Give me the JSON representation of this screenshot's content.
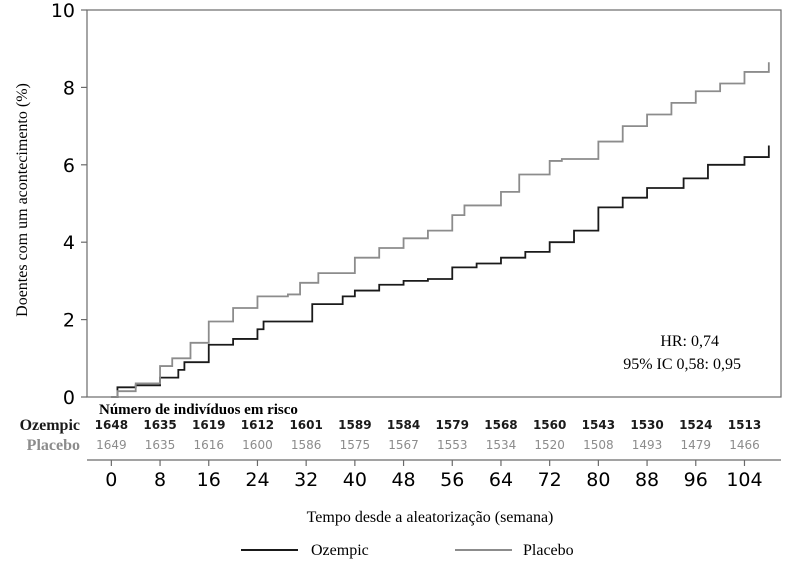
{
  "chart_data": {
    "type": "line",
    "ylabel": "Doentes com um acontecimento (%)",
    "xlabel": "Tempo desde a aleatorização (semana)",
    "ylim": [
      0,
      10
    ],
    "yticks": [
      0,
      2,
      4,
      6,
      8,
      10
    ],
    "xlim": [
      -4,
      110
    ],
    "xticks": [
      0,
      8,
      16,
      24,
      32,
      40,
      48,
      56,
      64,
      72,
      80,
      88,
      96,
      104
    ],
    "grid": false,
    "legend_position": "bottom",
    "annotation": {
      "hr": "HR: 0,74",
      "ci": "95% IC 0,58: 0,95"
    },
    "risk_table": {
      "title": "Número de indivíduos em risco",
      "rows": [
        {
          "label": "Ozempic",
          "color": "#1a1a1a",
          "values": [
            "1648",
            "1635",
            "1619",
            "1612",
            "1601",
            "1589",
            "1584",
            "1579",
            "1568",
            "1560",
            "1543",
            "1530",
            "1524",
            "1513"
          ]
        },
        {
          "label": "Placebo",
          "color": "#8c8c8c",
          "values": [
            "1649",
            "1635",
            "1616",
            "1600",
            "1586",
            "1575",
            "1567",
            "1553",
            "1534",
            "1520",
            "1508",
            "1493",
            "1479",
            "1466"
          ]
        }
      ]
    },
    "series": [
      {
        "name": "Ozempic",
        "color": "#1a1a1a",
        "x": [
          0,
          1,
          4,
          8,
          11,
          12,
          16,
          20,
          24,
          25,
          31,
          33,
          38,
          40,
          44,
          48,
          52,
          56,
          60,
          64,
          68,
          72,
          76,
          80,
          84,
          88,
          94,
          98,
          104,
          108
        ],
        "y": [
          0,
          0.25,
          0.3,
          0.5,
          0.7,
          0.9,
          1.35,
          1.5,
          1.75,
          1.95,
          1.95,
          2.4,
          2.6,
          2.75,
          2.9,
          3.0,
          3.05,
          3.35,
          3.45,
          3.6,
          3.75,
          4.0,
          4.3,
          4.9,
          5.15,
          5.4,
          5.65,
          6.0,
          6.2,
          6.5
        ]
      },
      {
        "name": "Placebo",
        "color": "#8c8c8c",
        "x": [
          0,
          1,
          4,
          8,
          10,
          13,
          16,
          20,
          24,
          29,
          31,
          34,
          40,
          44,
          48,
          52,
          56,
          58,
          64,
          67,
          72,
          74,
          80,
          84,
          88,
          92,
          96,
          100,
          104,
          108
        ],
        "y": [
          0,
          0.15,
          0.35,
          0.8,
          1.0,
          1.4,
          1.95,
          2.3,
          2.6,
          2.65,
          2.95,
          3.2,
          3.6,
          3.85,
          4.1,
          4.3,
          4.7,
          4.95,
          5.3,
          5.75,
          6.1,
          6.15,
          6.6,
          7.0,
          7.3,
          7.6,
          7.9,
          8.1,
          8.4,
          8.65
        ]
      }
    ]
  }
}
